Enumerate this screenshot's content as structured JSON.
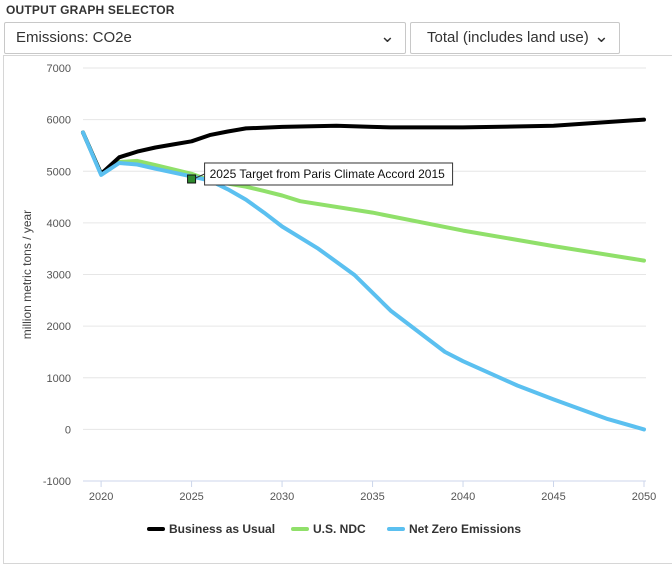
{
  "header": {
    "title": "OUTPUT GRAPH SELECTOR"
  },
  "selectors": {
    "emissions": {
      "value": "Emissions: CO2e"
    },
    "scope": {
      "value": "Total (includes land use)"
    }
  },
  "colors": {
    "business_as_usual": "#000000",
    "us_ndc": "#90e06a",
    "net_zero": "#5bc0f0",
    "grid": "#e6e6e6",
    "target_marker": "#2e8b2e"
  },
  "chart_data": {
    "type": "line",
    "xlabel": "",
    "ylabel": "million metric tons / year",
    "xlim": [
      2019,
      2050
    ],
    "ylim": [
      -1000,
      7000
    ],
    "x_ticks": [
      2020,
      2025,
      2030,
      2035,
      2040,
      2045,
      2050
    ],
    "y_ticks": [
      -1000,
      0,
      1000,
      2000,
      3000,
      4000,
      5000,
      6000,
      7000
    ],
    "grid": "horizontal",
    "legend_position": "bottom",
    "series": [
      {
        "name": "Business as Usual",
        "color": "#000000",
        "x": [
          2019,
          2020,
          2021,
          2022,
          2023,
          2024,
          2025,
          2026,
          2027,
          2028,
          2030,
          2033,
          2035,
          2036,
          2040,
          2045,
          2050
        ],
        "values": [
          5750,
          4950,
          5270,
          5380,
          5460,
          5520,
          5580,
          5700,
          5770,
          5830,
          5860,
          5880,
          5860,
          5850,
          5850,
          5880,
          6000
        ]
      },
      {
        "name": "U.S. NDC",
        "color": "#90e06a",
        "x": [
          2019,
          2020,
          2021,
          2022,
          2023,
          2025,
          2026,
          2028,
          2029,
          2030,
          2031,
          2035,
          2040,
          2045,
          2050
        ],
        "values": [
          5750,
          4950,
          5180,
          5200,
          5120,
          4950,
          4820,
          4700,
          4620,
          4530,
          4420,
          4200,
          3850,
          3550,
          3270
        ]
      },
      {
        "name": "Net Zero Emissions",
        "color": "#5bc0f0",
        "x": [
          2019,
          2020,
          2021,
          2022,
          2023,
          2025,
          2026,
          2027,
          2028,
          2029,
          2030,
          2032,
          2034,
          2036,
          2039,
          2040,
          2043,
          2045,
          2048,
          2050
        ],
        "values": [
          5750,
          4930,
          5160,
          5130,
          5050,
          4900,
          4820,
          4650,
          4450,
          4200,
          3930,
          3500,
          2990,
          2300,
          1500,
          1320,
          850,
          580,
          200,
          0
        ]
      }
    ],
    "annotations": [
      {
        "x": 2025,
        "y": 4850,
        "text": "2025 Target from Paris Climate Accord 2015"
      }
    ]
  }
}
